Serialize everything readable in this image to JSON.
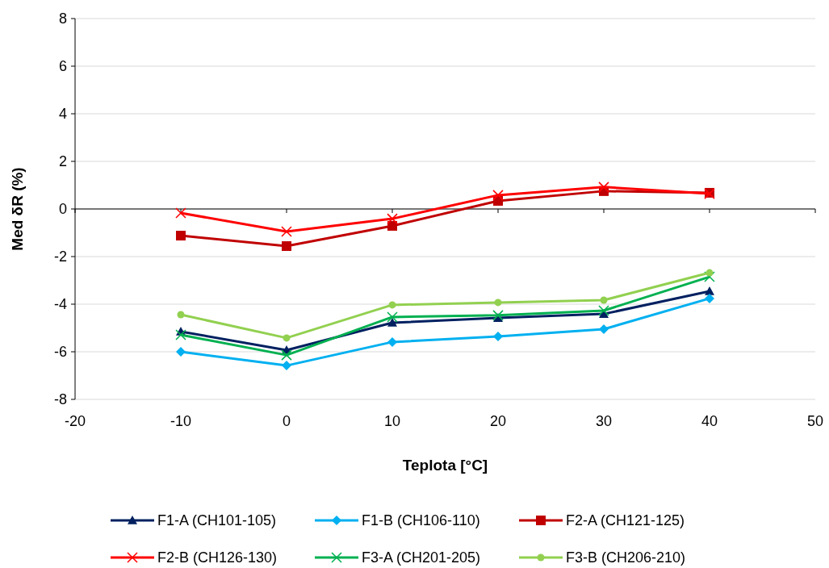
{
  "chart_data": {
    "type": "line",
    "xlabel": "Teplota [°C]",
    "ylabel": "Med δR (%)",
    "x": [
      -10,
      0,
      10,
      20,
      30,
      40
    ],
    "xlim": [
      -20,
      50
    ],
    "xticks": [
      -20,
      -10,
      0,
      10,
      20,
      30,
      40,
      50
    ],
    "ylim": [
      -8,
      8
    ],
    "yticks": [
      -8,
      -6,
      -4,
      -2,
      0,
      2,
      4,
      6,
      8
    ],
    "grid": "y",
    "legend": "bottom",
    "series": [
      {
        "name": "F1-A (CH101-105)",
        "color": "#002060",
        "marker": "triangle",
        "values": [
          -5.15,
          -5.93,
          -4.78,
          -4.58,
          -4.41,
          -3.46
        ]
      },
      {
        "name": "F1-B (CH106-110)",
        "color": "#00b0f0",
        "marker": "diamond",
        "values": [
          -6.0,
          -6.58,
          -5.59,
          -5.36,
          -5.05,
          -3.76
        ]
      },
      {
        "name": "F2-A (CH121-125)",
        "color": "#c00000",
        "marker": "square",
        "values": [
          -1.12,
          -1.56,
          -0.71,
          0.34,
          0.75,
          0.68
        ]
      },
      {
        "name": "F2-B (CH126-130)",
        "color": "#ff0000",
        "marker": "cross",
        "values": [
          -0.17,
          -0.95,
          -0.41,
          0.58,
          0.92,
          0.64
        ]
      },
      {
        "name": "F3-A (CH201-205)",
        "color": "#00b050",
        "marker": "cross",
        "values": [
          -5.29,
          -6.14,
          -4.54,
          -4.47,
          -4.27,
          -2.85
        ]
      },
      {
        "name": "F3-B (CH206-210)",
        "color": "#92d050",
        "marker": "circle",
        "values": [
          -4.44,
          -5.42,
          -4.03,
          -3.93,
          -3.83,
          -2.68
        ]
      }
    ]
  }
}
